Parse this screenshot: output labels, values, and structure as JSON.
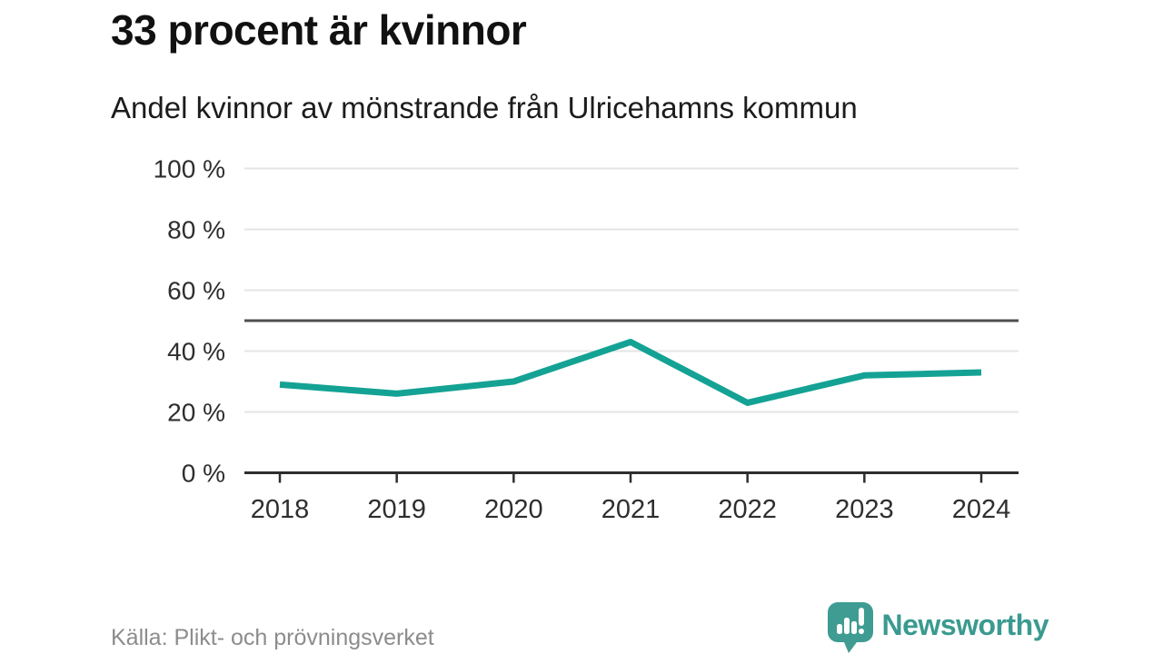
{
  "header": {
    "title": "33 procent är kvinnor",
    "subtitle": "Andel kvinnor av mönstrande från Ulricehamns kommun"
  },
  "chart_data": {
    "type": "line",
    "title": "33 procent är kvinnor",
    "subtitle": "Andel kvinnor av mönstrande från Ulricehamns kommun",
    "categories": [
      "2018",
      "2019",
      "2020",
      "2021",
      "2022",
      "2023",
      "2024"
    ],
    "series": [
      {
        "name": "Andel kvinnor av mönstrande",
        "values": [
          29,
          26,
          30,
          43,
          23,
          32,
          33
        ]
      }
    ],
    "unit": "%",
    "xlabel": "",
    "ylabel": "",
    "ylim": [
      0,
      100
    ],
    "yticks": [
      0,
      20,
      40,
      60,
      80,
      100
    ],
    "ytick_format": "{v} %",
    "reference_line": 50,
    "grid": true,
    "legend": "none",
    "line_color": "#14a294",
    "reference_color": "#4f4f4f",
    "axis_color": "#2d2d2d",
    "grid_color": "#e4e4e4",
    "label_color": "#2e2e2e"
  },
  "footer": {
    "source": "Källa: Plikt- och prövningsverket",
    "brand": "Newsworthy",
    "brand_color": "#3a9a90",
    "logo_icon": "speech-bubble-bar-chart-exclamation-icon",
    "logo_color": "#3f9c92"
  }
}
